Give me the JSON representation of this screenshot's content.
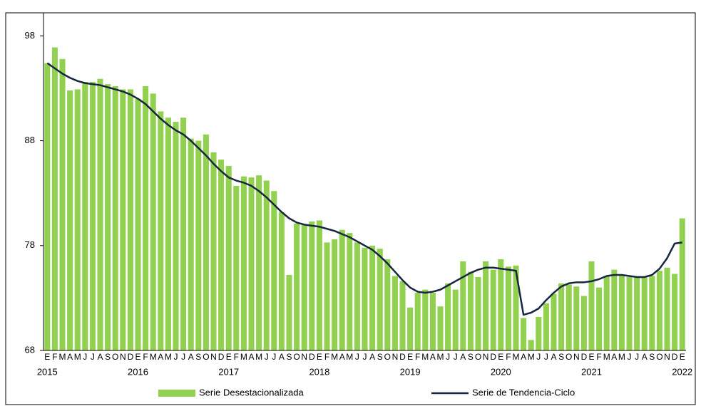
{
  "chart_data": {
    "type": "bar-line",
    "categories": [
      "E",
      "F",
      "M",
      "A",
      "M",
      "J",
      "J",
      "A",
      "S",
      "O",
      "N",
      "D",
      "E",
      "F",
      "M",
      "A",
      "M",
      "J",
      "J",
      "A",
      "S",
      "O",
      "N",
      "D",
      "E",
      "F",
      "M",
      "A",
      "M",
      "J",
      "J",
      "A",
      "S",
      "O",
      "N",
      "D",
      "E",
      "F",
      "M",
      "A",
      "M",
      "J",
      "J",
      "A",
      "S",
      "O",
      "N",
      "D",
      "E",
      "F",
      "M",
      "A",
      "M",
      "J",
      "J",
      "A",
      "S",
      "O",
      "N",
      "D",
      "E",
      "F",
      "M",
      "A",
      "M",
      "J",
      "J",
      "A",
      "S",
      "O",
      "N",
      "D",
      "E",
      "F",
      "M",
      "A",
      "M",
      "J",
      "J",
      "A",
      "S",
      "O",
      "N",
      "D",
      "E"
    ],
    "years": [
      "2015",
      "2016",
      "2017",
      "2018",
      "2019",
      "2020",
      "2021",
      "2022"
    ],
    "ylim": [
      68,
      100.2
    ],
    "yticks": [
      68,
      78,
      88,
      98
    ],
    "series": [
      {
        "name": "Serie Desestacionalizada",
        "kind": "bar",
        "color": "#92d050",
        "values": [
          95.4,
          96.9,
          95.8,
          92.8,
          92.9,
          93.6,
          93.6,
          93.9,
          93.4,
          93.2,
          92.9,
          92.9,
          92.0,
          93.2,
          92.5,
          90.8,
          90.2,
          89.8,
          90.2,
          88.2,
          88.0,
          88.6,
          86.9,
          86.2,
          85.6,
          83.7,
          84.6,
          84.5,
          84.7,
          84.2,
          83.2,
          81.2,
          75.2,
          80.1,
          80.0,
          80.3,
          80.4,
          78.3,
          78.6,
          79.5,
          79.2,
          78.3,
          77.8,
          78.0,
          77.7,
          76.7,
          75.1,
          74.6,
          72.1,
          73.5,
          73.8,
          73.5,
          72.2,
          74.4,
          73.8,
          76.5,
          75.5,
          75.0,
          76.5,
          75.7,
          76.7,
          76.0,
          76.1,
          71.1,
          69.0,
          71.2,
          72.5,
          73.4,
          74.4,
          74.3,
          74.1,
          73.2,
          76.5,
          74.0,
          75.1,
          75.7,
          75.2,
          75.0,
          75.0,
          75.0,
          75.1,
          75.6,
          75.9,
          75.3,
          80.6
        ]
      },
      {
        "name": "Serie de Tendencia-Ciclo",
        "kind": "line",
        "color": "#172640",
        "values": [
          95.4,
          94.9,
          94.4,
          94.0,
          93.7,
          93.5,
          93.4,
          93.3,
          93.1,
          92.9,
          92.7,
          92.4,
          92.0,
          91.5,
          90.8,
          90.1,
          89.5,
          89.0,
          88.6,
          88.0,
          87.3,
          86.6,
          85.8,
          85.1,
          84.5,
          84.2,
          84.0,
          83.7,
          83.2,
          82.6,
          81.9,
          81.2,
          80.6,
          80.2,
          80.0,
          79.9,
          79.8,
          79.6,
          79.4,
          79.1,
          78.8,
          78.4,
          78.0,
          77.6,
          77.0,
          76.3,
          75.5,
          74.7,
          74.0,
          73.6,
          73.5,
          73.6,
          73.8,
          74.2,
          74.6,
          75.0,
          75.4,
          75.7,
          75.9,
          75.9,
          75.8,
          75.7,
          75.6,
          71.4,
          71.6,
          72.0,
          72.8,
          73.5,
          74.1,
          74.4,
          74.5,
          74.5,
          74.6,
          74.8,
          75.1,
          75.2,
          75.2,
          75.1,
          75.0,
          75.0,
          75.2,
          75.8,
          76.8,
          78.2,
          78.3
        ]
      }
    ]
  }
}
